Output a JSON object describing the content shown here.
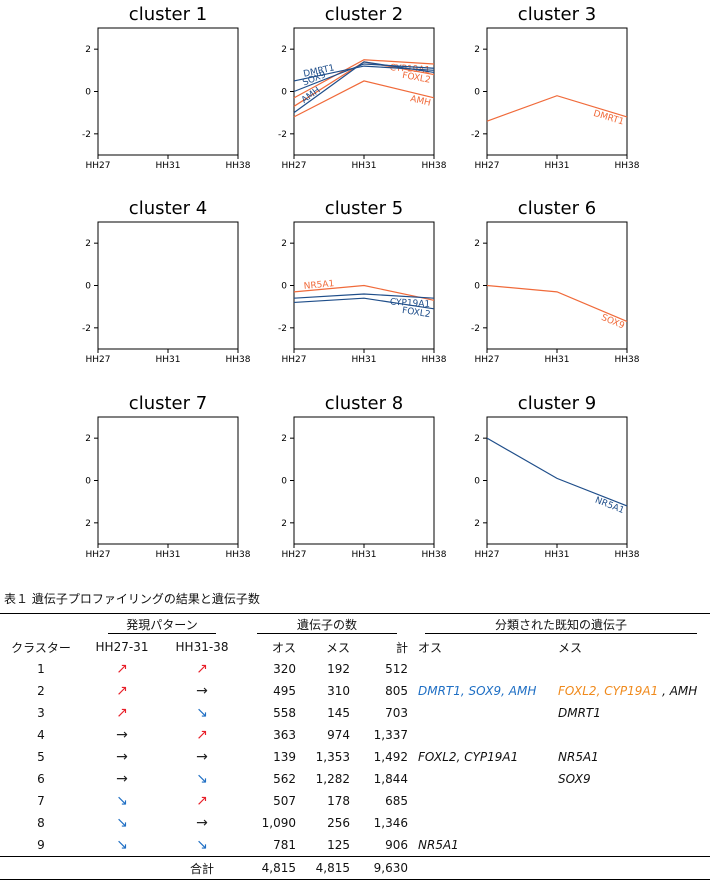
{
  "chart_data": [
    {
      "type": "line",
      "title": "cluster 1",
      "categories": [
        "HH27",
        "HH31",
        "HH38"
      ],
      "ylim": [
        -3,
        3
      ],
      "yticks": [
        2,
        0,
        -2
      ],
      "series": []
    },
    {
      "type": "line",
      "title": "cluster 2",
      "categories": [
        "HH27",
        "HH31",
        "HH38"
      ],
      "ylim": [
        -3,
        3
      ],
      "yticks": [
        2,
        0,
        -2
      ],
      "series": [
        {
          "name": "CYP19A1",
          "values": [
            -0.3,
            1.5,
            1.3
          ],
          "color": "#f06a3a",
          "label_at": "end"
        },
        {
          "name": "FOXL2",
          "values": [
            -0.7,
            1.4,
            0.8
          ],
          "color": "#f06a3a",
          "label_at": "end"
        },
        {
          "name": "AMH",
          "values": [
            -1.2,
            0.5,
            -0.3
          ],
          "color": "#f06a3a",
          "label_at": "end"
        },
        {
          "name": "DMRT1",
          "values": [
            0.5,
            1.2,
            1.0
          ],
          "color": "#1f4e8a",
          "label_at": "start"
        },
        {
          "name": "SOX9",
          "values": [
            0.0,
            1.3,
            1.1
          ],
          "color": "#1f4e8a",
          "label_at": "start"
        },
        {
          "name": "AMH",
          "values": [
            -1.0,
            1.4,
            0.9
          ],
          "color": "#1f4e8a",
          "label_at": "start"
        }
      ]
    },
    {
      "type": "line",
      "title": "cluster 3",
      "categories": [
        "HH27",
        "HH31",
        "HH38"
      ],
      "ylim": [
        -3,
        3
      ],
      "yticks": [
        2,
        0,
        -2
      ],
      "series": [
        {
          "name": "DMRT1",
          "values": [
            -1.4,
            -0.2,
            -1.2
          ],
          "color": "#f06a3a",
          "label_at": "end"
        }
      ]
    },
    {
      "type": "line",
      "title": "cluster 4",
      "categories": [
        "HH27",
        "HH31",
        "HH38"
      ],
      "ylim": [
        -3,
        3
      ],
      "yticks": [
        2,
        0,
        -2
      ],
      "series": []
    },
    {
      "type": "line",
      "title": "cluster 5",
      "categories": [
        "HH27",
        "HH31",
        "HH38"
      ],
      "ylim": [
        -3,
        3
      ],
      "yticks": [
        2,
        0,
        -2
      ],
      "series": [
        {
          "name": "NR5A1",
          "values": [
            -0.3,
            0.0,
            -0.7
          ],
          "color": "#f06a3a",
          "label_at": "start"
        },
        {
          "name": "CYP19A1",
          "values": [
            -0.6,
            -0.4,
            -0.6
          ],
          "color": "#1f4e8a",
          "label_at": "end"
        },
        {
          "name": "FOXL2",
          "values": [
            -0.8,
            -0.6,
            -1.1
          ],
          "color": "#1f4e8a",
          "label_at": "end"
        }
      ]
    },
    {
      "type": "line",
      "title": "cluster 6",
      "categories": [
        "HH27",
        "HH31",
        "HH38"
      ],
      "ylim": [
        -3,
        3
      ],
      "yticks": [
        2,
        0,
        -2
      ],
      "series": [
        {
          "name": "SOX9",
          "values": [
            0.0,
            -0.3,
            -1.7
          ],
          "color": "#f06a3a",
          "label_at": "end"
        }
      ]
    },
    {
      "type": "line",
      "title": "cluster 7",
      "categories": [
        "HH27",
        "HH31",
        "HH38"
      ],
      "ylim": [
        -3,
        3
      ],
      "yticks": [
        2,
        0,
        2
      ],
      "series": []
    },
    {
      "type": "line",
      "title": "cluster 8",
      "categories": [
        "HH27",
        "HH31",
        "HH38"
      ],
      "ylim": [
        -3,
        3
      ],
      "yticks": [
        2,
        0,
        2
      ],
      "series": []
    },
    {
      "type": "line",
      "title": "cluster 9",
      "categories": [
        "HH27",
        "HH31",
        "HH38"
      ],
      "ylim": [
        -3,
        3
      ],
      "yticks": [
        2,
        0,
        2
      ],
      "series": [
        {
          "name": "NR5A1",
          "values": [
            2.0,
            0.1,
            -1.2
          ],
          "color": "#1f4e8a",
          "label_at": "end"
        }
      ]
    }
  ],
  "table": {
    "caption": "表１ 遺伝子プロファイリングの結果と遺伝子数",
    "head": {
      "pattern": "発現パターン",
      "genes": "遺伝子の数",
      "known": "分類された既知の遺伝子",
      "cluster": "クラスター",
      "p1": "HH27-31",
      "p2": "HH31-38",
      "male": "オス",
      "female": "メス",
      "total": "計",
      "known_male": "オス",
      "known_female": "メス"
    },
    "rows": [
      {
        "cluster": "1",
        "p1": "↗",
        "p1_color": "#e8202a",
        "p2": "↗",
        "p2_color": "#e8202a",
        "male": "320",
        "female": "192",
        "total": "512",
        "known_male": "",
        "known_female": ""
      },
      {
        "cluster": "2",
        "p1": "↗",
        "p1_color": "#e8202a",
        "p2": "→",
        "p2_color": "#222222",
        "male": "495",
        "female": "310",
        "total": "805",
        "known_male": "DMRT1, SOX9, AMH",
        "known_male_color": "#1f6fc4",
        "known_female": "FOXL2, CYP19A1",
        "known_female_color": "#f08a1c",
        "known_female_extra": " , AMH"
      },
      {
        "cluster": "3",
        "p1": "↗",
        "p1_color": "#e8202a",
        "p2": "↘",
        "p2_color": "#1f6fc4",
        "male": "558",
        "female": "145",
        "total": "703",
        "known_male": "",
        "known_female": "DMRT1"
      },
      {
        "cluster": "4",
        "p1": "→",
        "p1_color": "#222222",
        "p2": "↗",
        "p2_color": "#e8202a",
        "male": "363",
        "female": "974",
        "total": "1,337",
        "known_male": "",
        "known_female": ""
      },
      {
        "cluster": "5",
        "p1": "→",
        "p1_color": "#222222",
        "p2": "→",
        "p2_color": "#222222",
        "male": "139",
        "female": "1,353",
        "total": "1,492",
        "known_male": "FOXL2, CYP19A1",
        "known_female": "NR5A1"
      },
      {
        "cluster": "6",
        "p1": "→",
        "p1_color": "#222222",
        "p2": "↘",
        "p2_color": "#1f6fc4",
        "male": "562",
        "female": "1,282",
        "total": "1,844",
        "known_male": "",
        "known_female": "SOX9"
      },
      {
        "cluster": "7",
        "p1": "↘",
        "p1_color": "#1f6fc4",
        "p2": "↗",
        "p2_color": "#e8202a",
        "male": "507",
        "female": "178",
        "total": "685",
        "known_male": "",
        "known_female": ""
      },
      {
        "cluster": "8",
        "p1": "↘",
        "p1_color": "#1f6fc4",
        "p2": "→",
        "p2_color": "#222222",
        "male": "1,090",
        "female": "256",
        "total": "1,346",
        "known_male": "",
        "known_female": ""
      },
      {
        "cluster": "9",
        "p1": "↘",
        "p1_color": "#1f6fc4",
        "p2": "↘",
        "p2_color": "#1f6fc4",
        "male": "781",
        "female": "125",
        "total": "906",
        "known_male": "NR5A1",
        "known_female": ""
      }
    ],
    "total_row": {
      "label": "合計",
      "male": "4,815",
      "female": "4,815",
      "total": "9,630"
    }
  }
}
